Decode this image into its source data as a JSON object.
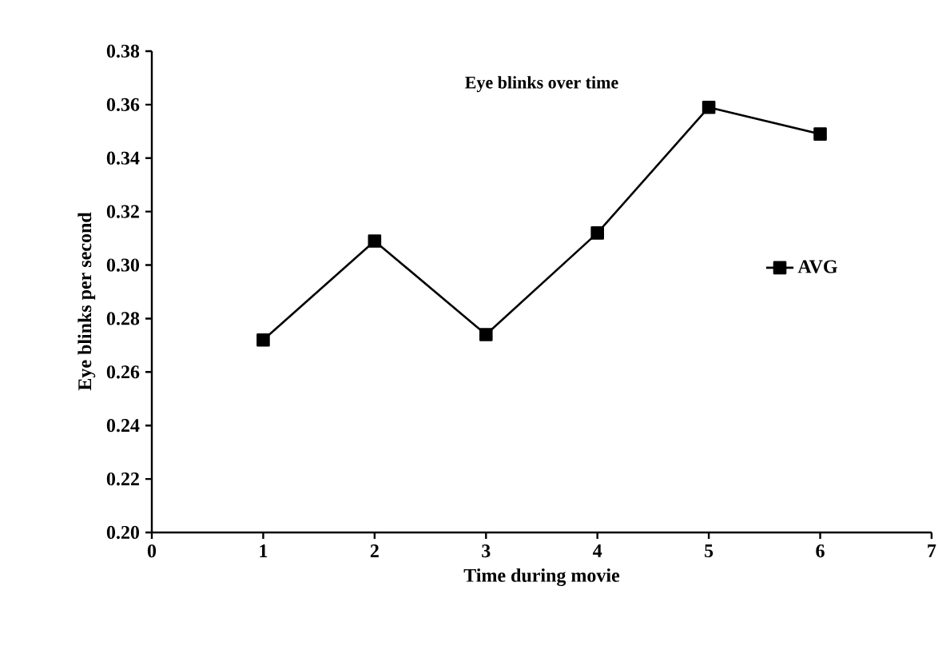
{
  "chart_data": {
    "type": "line",
    "title": "Eye blinks over time",
    "xlabel": "Time during movie",
    "ylabel": "Eye blinks per second",
    "x": [
      1,
      2,
      3,
      4,
      5,
      6
    ],
    "series": [
      {
        "name": "AVG",
        "color": "#000000",
        "values": [
          0.272,
          0.309,
          0.274,
          0.312,
          0.359,
          0.349
        ]
      }
    ],
    "xlim": [
      0,
      7
    ],
    "xticks": [
      0,
      1,
      2,
      3,
      4,
      5,
      6,
      7
    ],
    "ylim": [
      0.2,
      0.38
    ],
    "yticks": [
      {
        "value": 0.2,
        "label": "0.20"
      },
      0.22,
      0.24,
      0.26,
      0.28,
      {
        "value": 0.3,
        "label": "0.30"
      },
      0.32,
      0.34,
      0.36,
      0.38
    ],
    "grid": false,
    "legend": "right",
    "marker": "square",
    "line_style": "solid"
  }
}
